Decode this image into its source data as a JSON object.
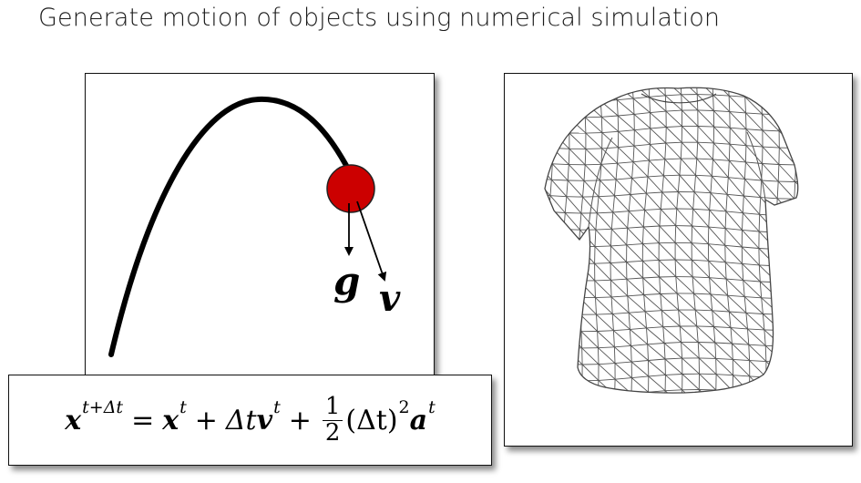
{
  "slide": {
    "title": "Generate motion of objects using numerical simulation"
  },
  "projectile": {
    "gravity_label": "g",
    "velocity_label": "v",
    "ball_color": "#cc0000"
  },
  "equation": {
    "lhs_var": "x",
    "lhs_sup": "t+Δt",
    "eq_sign": "=",
    "term1_var": "x",
    "term1_sup": "t",
    "plus1": "+",
    "term2_prefix": "Δt",
    "term2_var": "v",
    "term2_sup": "t",
    "plus2": "+",
    "frac_num": "1",
    "frac_den": "2",
    "term3_paren": "(Δt)",
    "term3_paren_sup": "2",
    "term3_var": "a",
    "term3_sup": "t"
  },
  "shirt": {
    "mesh_color": "#555555"
  }
}
